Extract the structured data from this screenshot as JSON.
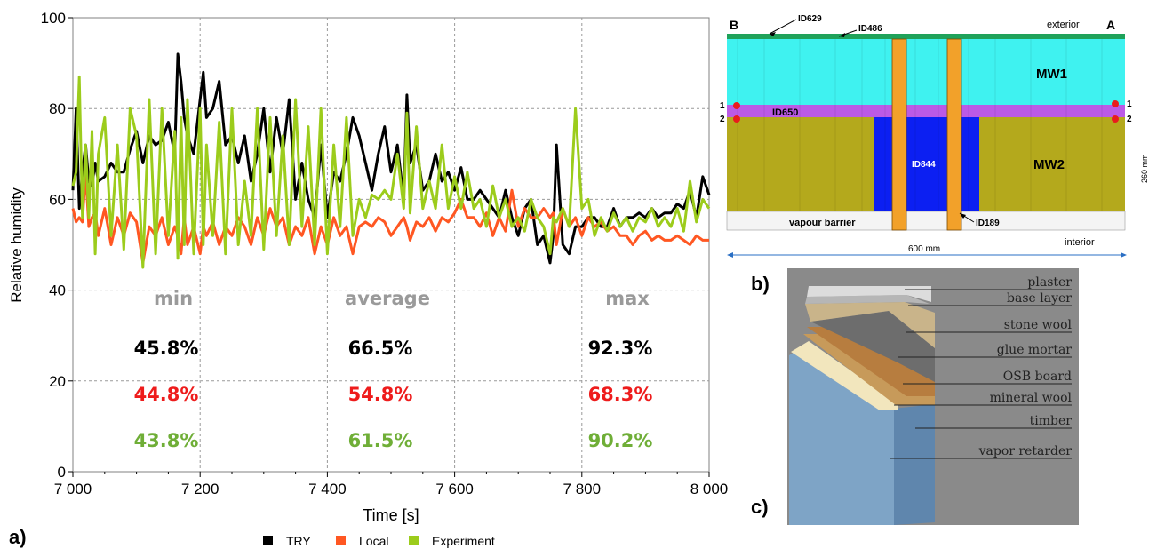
{
  "panels": {
    "a": "a)",
    "b": "b)",
    "c": "c)"
  },
  "chart_data": {
    "type": "line",
    "title": "",
    "xlabel": "Time [s]",
    "ylabel": "Relative humidity",
    "xlim": [
      7000,
      8000
    ],
    "ylim": [
      0,
      100
    ],
    "x_ticks": [
      7000,
      7200,
      7400,
      7600,
      7800,
      8000
    ],
    "x_tick_labels": [
      "7 000",
      "7 200",
      "7 400",
      "7 600",
      "7 800",
      "8 000"
    ],
    "y_ticks": [
      0,
      20,
      40,
      60,
      80,
      100
    ],
    "grid": true,
    "legend_placement": "bottom-center",
    "series": [
      {
        "name": "TRY",
        "color": "#000000",
        "x": [
          7000,
          7005,
          7010,
          7015,
          7020,
          7025,
          7030,
          7035,
          7040,
          7050,
          7060,
          7070,
          7080,
          7090,
          7100,
          7110,
          7120,
          7130,
          7140,
          7150,
          7160,
          7165,
          7170,
          7175,
          7180,
          7190,
          7200,
          7205,
          7210,
          7220,
          7230,
          7240,
          7250,
          7260,
          7270,
          7280,
          7290,
          7300,
          7310,
          7320,
          7330,
          7340,
          7350,
          7360,
          7370,
          7380,
          7390,
          7400,
          7410,
          7420,
          7430,
          7440,
          7450,
          7460,
          7470,
          7480,
          7490,
          7500,
          7510,
          7520,
          7525,
          7530,
          7540,
          7550,
          7560,
          7570,
          7580,
          7590,
          7600,
          7610,
          7620,
          7630,
          7640,
          7650,
          7660,
          7670,
          7680,
          7690,
          7700,
          7710,
          7720,
          7730,
          7740,
          7750,
          7755,
          7760,
          7770,
          7780,
          7790,
          7800,
          7810,
          7820,
          7830,
          7840,
          7850,
          7860,
          7870,
          7880,
          7890,
          7900,
          7910,
          7920,
          7930,
          7940,
          7950,
          7960,
          7970,
          7980,
          7990,
          8000
        ],
        "y": [
          62,
          80,
          58,
          66,
          72,
          64,
          63,
          68,
          64,
          65,
          68,
          66,
          66,
          71,
          75,
          68,
          74,
          72,
          73,
          77,
          70,
          92,
          86,
          78,
          74,
          70,
          82,
          88,
          78,
          80,
          86,
          72,
          74,
          68,
          74,
          64,
          70,
          80,
          66,
          78,
          70,
          82,
          60,
          68,
          60,
          56,
          72,
          56,
          66,
          64,
          70,
          78,
          74,
          68,
          62,
          70,
          76,
          66,
          72,
          60,
          83,
          68,
          72,
          62,
          64,
          70,
          64,
          66,
          62,
          67,
          60,
          60,
          62,
          60,
          58,
          56,
          62,
          56,
          52,
          58,
          60,
          50,
          52,
          46,
          52,
          72,
          50,
          48,
          54,
          54,
          56,
          56,
          54,
          54,
          58,
          54,
          56,
          56,
          57,
          56,
          58,
          56,
          57,
          57,
          59,
          58,
          62,
          56,
          65,
          61
        ]
      },
      {
        "name": "Local",
        "color": "#ff5722",
        "x": [
          7000,
          7005,
          7010,
          7015,
          7020,
          7025,
          7030,
          7035,
          7040,
          7050,
          7060,
          7070,
          7080,
          7090,
          7100,
          7110,
          7120,
          7130,
          7140,
          7150,
          7160,
          7165,
          7170,
          7175,
          7180,
          7190,
          7200,
          7205,
          7210,
          7220,
          7230,
          7240,
          7250,
          7260,
          7270,
          7280,
          7290,
          7300,
          7310,
          7320,
          7330,
          7340,
          7350,
          7360,
          7370,
          7380,
          7390,
          7400,
          7410,
          7420,
          7430,
          7440,
          7450,
          7460,
          7470,
          7480,
          7490,
          7500,
          7510,
          7520,
          7525,
          7530,
          7540,
          7550,
          7560,
          7570,
          7580,
          7590,
          7600,
          7610,
          7620,
          7630,
          7640,
          7650,
          7660,
          7670,
          7680,
          7690,
          7700,
          7710,
          7720,
          7730,
          7740,
          7750,
          7755,
          7760,
          7770,
          7780,
          7790,
          7800,
          7810,
          7820,
          7830,
          7840,
          7850,
          7860,
          7870,
          7880,
          7890,
          7900,
          7910,
          7920,
          7930,
          7940,
          7950,
          7960,
          7970,
          7980,
          7990,
          8000
        ],
        "y": [
          58,
          55,
          56,
          55,
          66,
          54,
          56,
          57,
          52,
          58,
          50,
          56,
          52,
          57,
          55,
          46,
          54,
          52,
          56,
          50,
          54,
          52,
          48,
          56,
          50,
          54,
          48,
          54,
          52,
          55,
          50,
          54,
          52,
          56,
          54,
          50,
          56,
          52,
          58,
          54,
          56,
          50,
          54,
          52,
          56,
          48,
          54,
          50,
          56,
          52,
          54,
          48,
          54,
          55,
          54,
          56,
          55,
          52,
          54,
          56,
          54,
          51,
          55,
          54,
          56,
          53,
          56,
          55,
          57,
          60,
          56,
          56,
          54,
          57,
          52,
          56,
          53,
          62,
          54,
          58,
          56,
          56,
          58,
          56,
          57,
          50,
          58,
          54,
          56,
          52,
          56,
          54,
          55,
          53,
          54,
          52,
          52,
          50,
          52,
          53,
          51,
          52,
          51,
          51,
          52,
          51,
          50,
          52,
          51,
          51
        ]
      },
      {
        "name": "Experiment",
        "color": "#9ccc1c",
        "x": [
          7000,
          7005,
          7010,
          7015,
          7020,
          7025,
          7030,
          7035,
          7040,
          7050,
          7060,
          7070,
          7080,
          7090,
          7100,
          7110,
          7120,
          7130,
          7140,
          7150,
          7160,
          7165,
          7170,
          7175,
          7180,
          7190,
          7200,
          7205,
          7210,
          7220,
          7230,
          7240,
          7250,
          7260,
          7270,
          7280,
          7290,
          7300,
          7310,
          7320,
          7330,
          7340,
          7350,
          7360,
          7370,
          7380,
          7390,
          7400,
          7410,
          7420,
          7430,
          7440,
          7450,
          7460,
          7470,
          7480,
          7490,
          7500,
          7510,
          7520,
          7525,
          7530,
          7540,
          7550,
          7560,
          7570,
          7580,
          7590,
          7600,
          7610,
          7620,
          7630,
          7640,
          7650,
          7660,
          7670,
          7680,
          7690,
          7700,
          7710,
          7720,
          7730,
          7740,
          7750,
          7755,
          7760,
          7770,
          7780,
          7790,
          7800,
          7810,
          7820,
          7830,
          7840,
          7850,
          7860,
          7870,
          7880,
          7890,
          7900,
          7910,
          7920,
          7930,
          7940,
          7950,
          7960,
          7970,
          7980,
          7990,
          8000
        ],
        "y": [
          63,
          66,
          87,
          56,
          72,
          56,
          75,
          48,
          70,
          78,
          52,
          72,
          49,
          80,
          74,
          45,
          82,
          48,
          80,
          52,
          75,
          47,
          78,
          50,
          82,
          48,
          80,
          50,
          72,
          52,
          77,
          48,
          80,
          50,
          64,
          52,
          80,
          49,
          78,
          52,
          74,
          50,
          82,
          54,
          76,
          50,
          80,
          48,
          72,
          54,
          78,
          52,
          60,
          56,
          61,
          60,
          62,
          60,
          70,
          58,
          79,
          57,
          76,
          58,
          64,
          58,
          72,
          58,
          65,
          58,
          66,
          58,
          60,
          54,
          63,
          56,
          60,
          54,
          56,
          53,
          60,
          56,
          54,
          48,
          56,
          55,
          58,
          54,
          80,
          58,
          60,
          52,
          56,
          53,
          57,
          54,
          56,
          53,
          56,
          55,
          58,
          54,
          56,
          54,
          58,
          53,
          64,
          55,
          60,
          58
        ]
      }
    ],
    "stats": {
      "headers": [
        "min",
        "average",
        "max"
      ],
      "rows": [
        {
          "series": "TRY",
          "color": "#000000",
          "values": [
            "45.8%",
            "66.5%",
            "92.3%"
          ]
        },
        {
          "series": "Local",
          "color": "#ee1c1c",
          "values": [
            "44.8%",
            "54.8%",
            "68.3%"
          ]
        },
        {
          "series": "Experiment",
          "color": "#6fae37",
          "values": [
            "43.8%",
            "61.5%",
            "90.2%"
          ]
        }
      ]
    }
  },
  "diagram_b": {
    "corner_left": "B",
    "corner_right": "A",
    "exterior": "exterior",
    "interior": "interior",
    "label_id629": "ID629",
    "label_id486": "ID486",
    "label_mw1": "MW1",
    "label_mw2": "MW2",
    "label_id650": "ID650",
    "label_id844": "ID844",
    "label_id189": "ID189",
    "label_vapour": "vapour barrier",
    "point_1": "1",
    "point_2": "2",
    "width_dim": "600 mm",
    "height_dim": "260 mm"
  },
  "diagram_c": {
    "layers": [
      "plaster",
      "base layer",
      "stone wool",
      "glue mortar",
      "OSB board",
      "mineral wool",
      "timber",
      "vapor retarder"
    ]
  }
}
